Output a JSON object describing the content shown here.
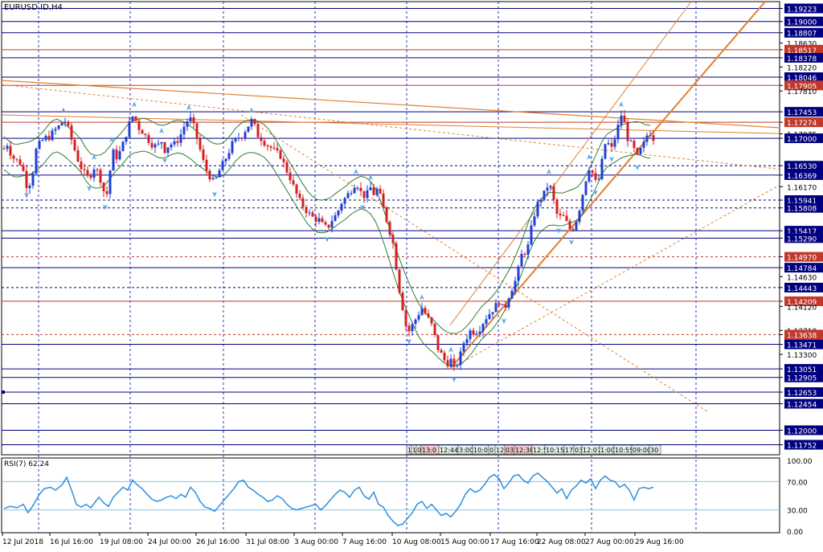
{
  "chart_data": {
    "type": "candlestick",
    "title": "EURUSD.ID,H4",
    "symbol": "EURUSD.ID",
    "timeframe": "H4",
    "ylim": [
      1.1158,
      1.1934
    ],
    "price_axis_labels": [
      "1.19223",
      "1.19000",
      "1.18807",
      "1.18630",
      "1.18517",
      "1.18378",
      "1.18220",
      "1.18046",
      "1.17905",
      "1.17810",
      "1.17453",
      "1.17274",
      "1.17075",
      "1.17000",
      "1.16530",
      "1.16369",
      "1.16170",
      "1.15941",
      "1.15808",
      "1.15417",
      "1.15290",
      "1.14970",
      "1.14784",
      "1.14630",
      "1.14443",
      "1.14209",
      "1.14120",
      "1.13710",
      "1.13638",
      "1.13471",
      "1.13300",
      "1.13051",
      "1.12905",
      "1.12653",
      "1.12454",
      "1.12000",
      "1.11752"
    ],
    "highlighted_levels": [
      {
        "price": 1.19223,
        "label": "1.19223",
        "color": "#000080"
      },
      {
        "price": 1.19,
        "label": "1.19000",
        "color": "#000080"
      },
      {
        "price": 1.18807,
        "label": "1.18807",
        "color": "#000080"
      },
      {
        "price": 1.18517,
        "label": "1.18517",
        "color": "#c0392b"
      },
      {
        "price": 1.18378,
        "label": "1.18378",
        "color": "#000080"
      },
      {
        "price": 1.18046,
        "label": "1.18046",
        "color": "#000080"
      },
      {
        "price": 1.17905,
        "label": "1.17905",
        "color": "#c0392b"
      },
      {
        "price": 1.17453,
        "label": "1.17453",
        "color": "#000080"
      },
      {
        "price": 1.17274,
        "label": "1.17274",
        "color": "#c0392b"
      },
      {
        "price": 1.17,
        "label": "1.17000",
        "color": "#000080"
      },
      {
        "price": 1.1653,
        "label": "1.16530",
        "color": "#000080"
      },
      {
        "price": 1.16369,
        "label": "1.16369",
        "color": "#000080"
      },
      {
        "price": 1.15941,
        "label": "1.15941",
        "color": "#000080"
      },
      {
        "price": 1.15808,
        "label": "1.15808",
        "color": "#000080"
      },
      {
        "price": 1.15417,
        "label": "1.15417",
        "color": "#000080"
      },
      {
        "price": 1.1529,
        "label": "1.15290",
        "color": "#000080"
      },
      {
        "price": 1.1497,
        "label": "1.14970",
        "color": "#c0392b"
      },
      {
        "price": 1.14784,
        "label": "1.14784",
        "color": "#000080"
      },
      {
        "price": 1.14443,
        "label": "1.14443",
        "color": "#000080"
      },
      {
        "price": 1.14209,
        "label": "1.14209",
        "color": "#c0392b"
      },
      {
        "price": 1.13638,
        "label": "1.13638",
        "color": "#c0392b"
      },
      {
        "price": 1.13471,
        "label": "1.13471",
        "color": "#000080"
      },
      {
        "price": 1.13051,
        "label": "1.13051",
        "color": "#000080"
      },
      {
        "price": 1.12905,
        "label": "1.12905",
        "color": "#000080"
      },
      {
        "price": 1.12653,
        "label": "1.12653",
        "color": "#000080"
      },
      {
        "price": 1.12454,
        "label": "1.12454",
        "color": "#000080"
      },
      {
        "price": 1.12,
        "label": "1.12000",
        "color": "#000080"
      },
      {
        "price": 1.11752,
        "label": "1.11752",
        "color": "#000080"
      }
    ],
    "x_labels": [
      "12 Jul 2018",
      "16 Jul 16:00",
      "19 Jul 08:00",
      "24 Jul 00:00",
      "26 Jul 16:00",
      "31 Jul 08:00",
      "3 Aug 00:00",
      "7 Aug 16:00",
      "10 Aug 08:00",
      "15 Aug 00:00",
      "17 Aug 16:00",
      "22 Aug 08:00",
      "27 Aug 00:00",
      "29 Aug 16:00"
    ],
    "close_path": [
      [
        0,
        1.1682
      ],
      [
        4,
        1.169
      ],
      [
        10,
        1.1668
      ],
      [
        16,
        1.1662
      ],
      [
        22,
        1.1655
      ],
      [
        28,
        1.162
      ],
      [
        34,
        1.1625
      ],
      [
        40,
        1.168
      ],
      [
        44,
        1.169
      ],
      [
        50,
        1.17
      ],
      [
        56,
        1.1702
      ],
      [
        62,
        1.1712
      ],
      [
        68,
        1.172
      ],
      [
        74,
        1.173
      ],
      [
        78,
        1.1728
      ],
      [
        82,
        1.1705
      ],
      [
        86,
        1.169
      ],
      [
        90,
        1.167
      ],
      [
        96,
        1.165
      ],
      [
        100,
        1.164
      ],
      [
        106,
        1.1632
      ],
      [
        112,
        1.165
      ],
      [
        118,
        1.164
      ],
      [
        122,
        1.162
      ],
      [
        126,
        1.16
      ],
      [
        130,
        1.161
      ],
      [
        134,
        1.168
      ],
      [
        140,
        1.1668
      ],
      [
        146,
        1.168
      ],
      [
        150,
        1.17
      ],
      [
        154,
        1.1715
      ],
      [
        158,
        1.1735
      ],
      [
        162,
        1.174
      ],
      [
        166,
        1.172
      ],
      [
        172,
        1.1712
      ],
      [
        178,
        1.17
      ],
      [
        184,
        1.169
      ],
      [
        190,
        1.1685
      ],
      [
        196,
        1.1695
      ],
      [
        200,
        1.168
      ],
      [
        206,
        1.169
      ],
      [
        212,
        1.169
      ],
      [
        218,
        1.17
      ],
      [
        224,
        1.172
      ],
      [
        230,
        1.1735
      ],
      [
        234,
        1.173
      ],
      [
        240,
        1.17
      ],
      [
        244,
        1.168
      ],
      [
        250,
        1.165
      ],
      [
        254,
        1.164
      ],
      [
        258,
        1.163
      ],
      [
        262,
        1.1622
      ],
      [
        266,
        1.164
      ],
      [
        270,
        1.165
      ],
      [
        274,
        1.166
      ],
      [
        280,
        1.1678
      ],
      [
        284,
        1.169
      ],
      [
        290,
        1.17
      ],
      [
        296,
        1.1705
      ],
      [
        302,
        1.1718
      ],
      [
        308,
        1.173
      ],
      [
        312,
        1.172
      ],
      [
        316,
        1.1705
      ],
      [
        320,
        1.17
      ],
      [
        326,
        1.169
      ],
      [
        332,
        1.1684
      ],
      [
        338,
        1.1676
      ],
      [
        344,
        1.167
      ],
      [
        350,
        1.165
      ],
      [
        356,
        1.1632
      ],
      [
        362,
        1.161
      ],
      [
        368,
        1.1592
      ],
      [
        374,
        1.158
      ],
      [
        380,
        1.157
      ],
      [
        386,
        1.1562
      ],
      [
        392,
        1.156
      ],
      [
        396,
        1.1552
      ],
      [
        402,
        1.1545
      ],
      [
        408,
        1.156
      ],
      [
        414,
        1.157
      ],
      [
        420,
        1.159
      ],
      [
        426,
        1.16
      ],
      [
        432,
        1.1612
      ],
      [
        438,
        1.1625
      ],
      [
        442,
        1.1615
      ],
      [
        446,
        1.16
      ],
      [
        452,
        1.1605
      ],
      [
        456,
        1.1615
      ],
      [
        460,
        1.1605
      ],
      [
        464,
        1.1612
      ],
      [
        468,
        1.16
      ],
      [
        472,
        1.158
      ],
      [
        476,
        1.156
      ],
      [
        480,
        1.154
      ],
      [
        484,
        1.152
      ],
      [
        488,
        1.148
      ],
      [
        492,
        1.144
      ],
      [
        496,
        1.141
      ],
      [
        500,
        1.138
      ],
      [
        504,
        1.137
      ],
      [
        508,
        1.138
      ],
      [
        512,
        1.139
      ],
      [
        516,
        1.14
      ],
      [
        520,
        1.141
      ],
      [
        524,
        1.14
      ],
      [
        528,
        1.139
      ],
      [
        532,
        1.138
      ],
      [
        536,
        1.136
      ],
      [
        540,
        1.134
      ],
      [
        544,
        1.133
      ],
      [
        548,
        1.132
      ],
      [
        552,
        1.1315
      ],
      [
        556,
        1.132
      ],
      [
        560,
        1.1305
      ],
      [
        564,
        1.1315
      ],
      [
        568,
        1.133
      ],
      [
        572,
        1.135
      ],
      [
        576,
        1.136
      ],
      [
        580,
        1.137
      ],
      [
        586,
        1.1368
      ],
      [
        592,
        1.1375
      ],
      [
        598,
        1.139
      ],
      [
        604,
        1.14
      ],
      [
        610,
        1.141
      ],
      [
        616,
        1.142
      ],
      [
        622,
        1.1405
      ],
      [
        628,
        1.143
      ],
      [
        634,
        1.145
      ],
      [
        638,
        1.146
      ],
      [
        642,
        1.149
      ],
      [
        646,
        1.151
      ],
      [
        650,
        1.15
      ],
      [
        654,
        1.153
      ],
      [
        658,
        1.156
      ],
      [
        662,
        1.158
      ],
      [
        666,
        1.1595
      ],
      [
        670,
        1.16
      ],
      [
        674,
        1.161
      ],
      [
        678,
        1.1625
      ],
      [
        682,
        1.1605
      ],
      [
        686,
        1.158
      ],
      [
        690,
        1.156
      ],
      [
        694,
        1.157
      ],
      [
        698,
        1.156
      ],
      [
        702,
        1.155
      ],
      [
        706,
        1.154
      ],
      [
        712,
        1.156
      ],
      [
        716,
        1.158
      ],
      [
        720,
        1.1605
      ],
      [
        724,
        1.163
      ],
      [
        728,
        1.165
      ],
      [
        732,
        1.164
      ],
      [
        736,
        1.1625
      ],
      [
        740,
        1.163
      ],
      [
        744,
        1.166
      ],
      [
        748,
        1.169
      ],
      [
        752,
        1.169
      ],
      [
        756,
        1.1682
      ],
      [
        760,
        1.17
      ],
      [
        764,
        1.172
      ],
      [
        768,
        1.174
      ],
      [
        772,
        1.1725
      ],
      [
        776,
        1.17
      ],
      [
        780,
        1.169
      ],
      [
        784,
        1.168
      ],
      [
        788,
        1.1668
      ],
      [
        792,
        1.168
      ],
      [
        796,
        1.169
      ],
      [
        800,
        1.1705
      ],
      [
        804,
        1.171
      ],
      [
        808,
        1.17
      ]
    ],
    "rsi": {
      "label": "RSI(7) 62.24",
      "ylim": [
        0,
        100
      ],
      "levels": [
        70,
        30
      ],
      "axis_labels": [
        "100.00",
        "70.00",
        "30.00",
        "0.00"
      ],
      "series": [
        [
          0,
          32
        ],
        [
          8,
          35
        ],
        [
          16,
          33
        ],
        [
          24,
          38
        ],
        [
          30,
          26
        ],
        [
          36,
          36
        ],
        [
          44,
          52
        ],
        [
          50,
          60
        ],
        [
          58,
          62
        ],
        [
          64,
          58
        ],
        [
          72,
          65
        ],
        [
          78,
          76
        ],
        [
          84,
          58
        ],
        [
          90,
          38
        ],
        [
          96,
          34
        ],
        [
          102,
          38
        ],
        [
          108,
          33
        ],
        [
          114,
          42
        ],
        [
          118,
          48
        ],
        [
          124,
          40
        ],
        [
          130,
          35
        ],
        [
          136,
          48
        ],
        [
          142,
          55
        ],
        [
          148,
          62
        ],
        [
          154,
          58
        ],
        [
          160,
          72
        ],
        [
          166,
          65
        ],
        [
          172,
          60
        ],
        [
          178,
          52
        ],
        [
          184,
          45
        ],
        [
          190,
          42
        ],
        [
          196,
          44
        ],
        [
          202,
          48
        ],
        [
          208,
          50
        ],
        [
          214,
          46
        ],
        [
          220,
          52
        ],
        [
          226,
          48
        ],
        [
          232,
          62
        ],
        [
          238,
          55
        ],
        [
          244,
          42
        ],
        [
          250,
          34
        ],
        [
          256,
          32
        ],
        [
          262,
          28
        ],
        [
          268,
          36
        ],
        [
          274,
          44
        ],
        [
          280,
          52
        ],
        [
          286,
          60
        ],
        [
          292,
          70
        ],
        [
          298,
          72
        ],
        [
          304,
          62
        ],
        [
          310,
          58
        ],
        [
          316,
          52
        ],
        [
          322,
          48
        ],
        [
          328,
          42
        ],
        [
          334,
          44
        ],
        [
          340,
          50
        ],
        [
          346,
          46
        ],
        [
          352,
          38
        ],
        [
          358,
          32
        ],
        [
          364,
          30
        ],
        [
          370,
          32
        ],
        [
          376,
          34
        ],
        [
          382,
          36
        ],
        [
          388,
          38
        ],
        [
          394,
          30
        ],
        [
          400,
          36
        ],
        [
          406,
          44
        ],
        [
          412,
          52
        ],
        [
          418,
          58
        ],
        [
          424,
          55
        ],
        [
          430,
          48
        ],
        [
          436,
          58
        ],
        [
          442,
          62
        ],
        [
          448,
          50
        ],
        [
          454,
          45
        ],
        [
          460,
          55
        ],
        [
          466,
          38
        ],
        [
          472,
          34
        ],
        [
          478,
          22
        ],
        [
          484,
          14
        ],
        [
          490,
          8
        ],
        [
          496,
          10
        ],
        [
          502,
          18
        ],
        [
          508,
          26
        ],
        [
          514,
          38
        ],
        [
          520,
          42
        ],
        [
          526,
          32
        ],
        [
          532,
          38
        ],
        [
          538,
          30
        ],
        [
          544,
          22
        ],
        [
          550,
          25
        ],
        [
          556,
          20
        ],
        [
          562,
          28
        ],
        [
          568,
          38
        ],
        [
          574,
          52
        ],
        [
          580,
          60
        ],
        [
          586,
          55
        ],
        [
          592,
          58
        ],
        [
          598,
          66
        ],
        [
          604,
          76
        ],
        [
          610,
          80
        ],
        [
          616,
          74
        ],
        [
          622,
          60
        ],
        [
          628,
          68
        ],
        [
          634,
          78
        ],
        [
          640,
          80
        ],
        [
          646,
          72
        ],
        [
          652,
          68
        ],
        [
          658,
          78
        ],
        [
          664,
          82
        ],
        [
          670,
          76
        ],
        [
          676,
          70
        ],
        [
          682,
          62
        ],
        [
          688,
          54
        ],
        [
          694,
          60
        ],
        [
          700,
          46
        ],
        [
          706,
          58
        ],
        [
          712,
          64
        ],
        [
          718,
          72
        ],
        [
          724,
          68
        ],
        [
          730,
          74
        ],
        [
          736,
          60
        ],
        [
          742,
          72
        ],
        [
          748,
          78
        ],
        [
          754,
          72
        ],
        [
          760,
          70
        ],
        [
          766,
          62
        ],
        [
          772,
          66
        ],
        [
          778,
          58
        ],
        [
          784,
          44
        ],
        [
          790,
          60
        ],
        [
          796,
          62
        ],
        [
          802,
          60
        ],
        [
          808,
          62
        ]
      ]
    }
  },
  "timestamp_boxes": [
    "1",
    "1",
    "0",
    "13:0",
    "12:44",
    "3:00",
    "10:0",
    "0",
    "12",
    "03",
    "12:38",
    "12:5",
    "10:15",
    "17:",
    "03",
    "12:07",
    "1:00",
    "10:55",
    "09:00",
    "30"
  ],
  "colors": {
    "bull_candle": "#1f3fd4",
    "bear_candle": "#d62020",
    "support_line": "#000080",
    "key_level_line": "#c0392b",
    "trend_line": "#e08030",
    "bollinger": "#2e7d32",
    "rsi_line": "#2b8fe0",
    "rsi_level": "#7ec8f0",
    "grid_vertical": "#2a34c8",
    "fractal_arrow": "#5aa6e6"
  }
}
